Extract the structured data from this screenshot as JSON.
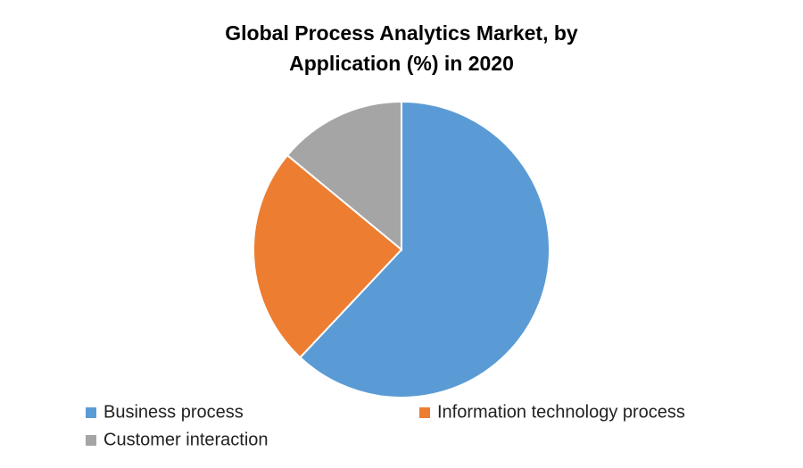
{
  "chart_data": {
    "type": "pie",
    "title": "Global Process Analytics Market, by Application (%) in 2020",
    "categories": [
      "Business process",
      "Information technology process",
      "Customer interaction"
    ],
    "values": [
      62,
      24,
      14
    ],
    "colors": [
      "#5b9bd5",
      "#ed7d31",
      "#a5a5a5"
    ],
    "legend": "bottom"
  }
}
